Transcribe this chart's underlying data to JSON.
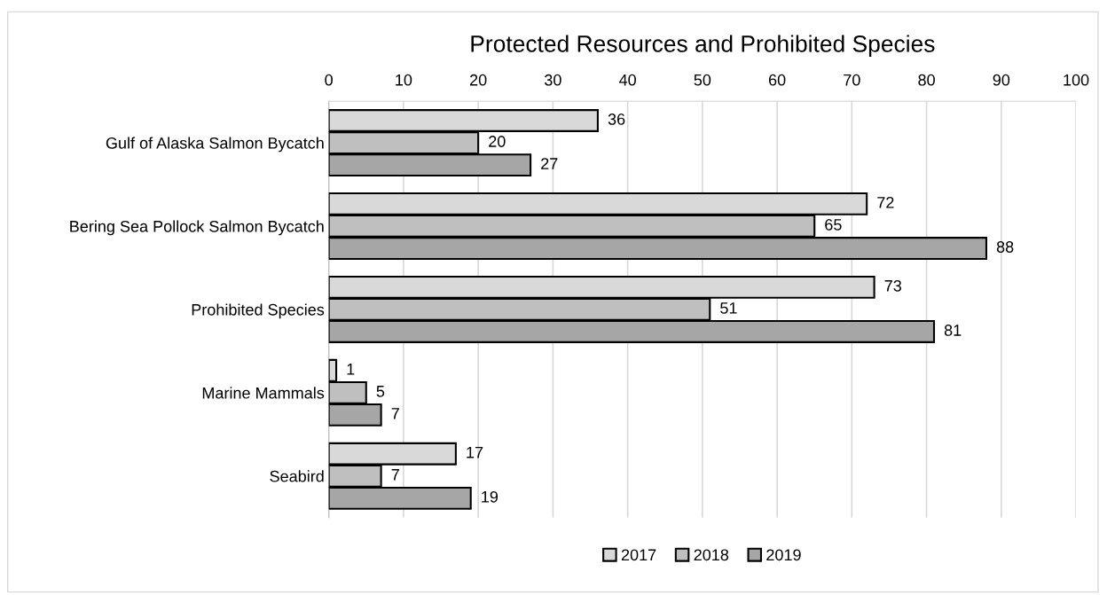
{
  "chart_data": {
    "type": "bar",
    "orientation": "horizontal",
    "title": "Protected Resources and Prohibited Species",
    "categories": [
      "Gulf of Alaska Salmon Bycatch",
      "Bering Sea Pollock Salmon Bycatch",
      "Prohibited Species",
      "Marine Mammals",
      "Seabird"
    ],
    "series": [
      {
        "name": "2017",
        "color": "#d9d9d9",
        "values": [
          36,
          72,
          73,
          1,
          17
        ]
      },
      {
        "name": "2018",
        "color": "#bfbfbf",
        "values": [
          20,
          65,
          51,
          5,
          7
        ]
      },
      {
        "name": "2019",
        "color": "#a6a6a6",
        "values": [
          27,
          88,
          81,
          7,
          19
        ]
      }
    ],
    "xlim": [
      0,
      100
    ],
    "xticks": [
      0,
      10,
      20,
      30,
      40,
      50,
      60,
      70,
      80,
      90,
      100
    ],
    "grid": "x",
    "legend": "bottom",
    "data_labels": true
  }
}
